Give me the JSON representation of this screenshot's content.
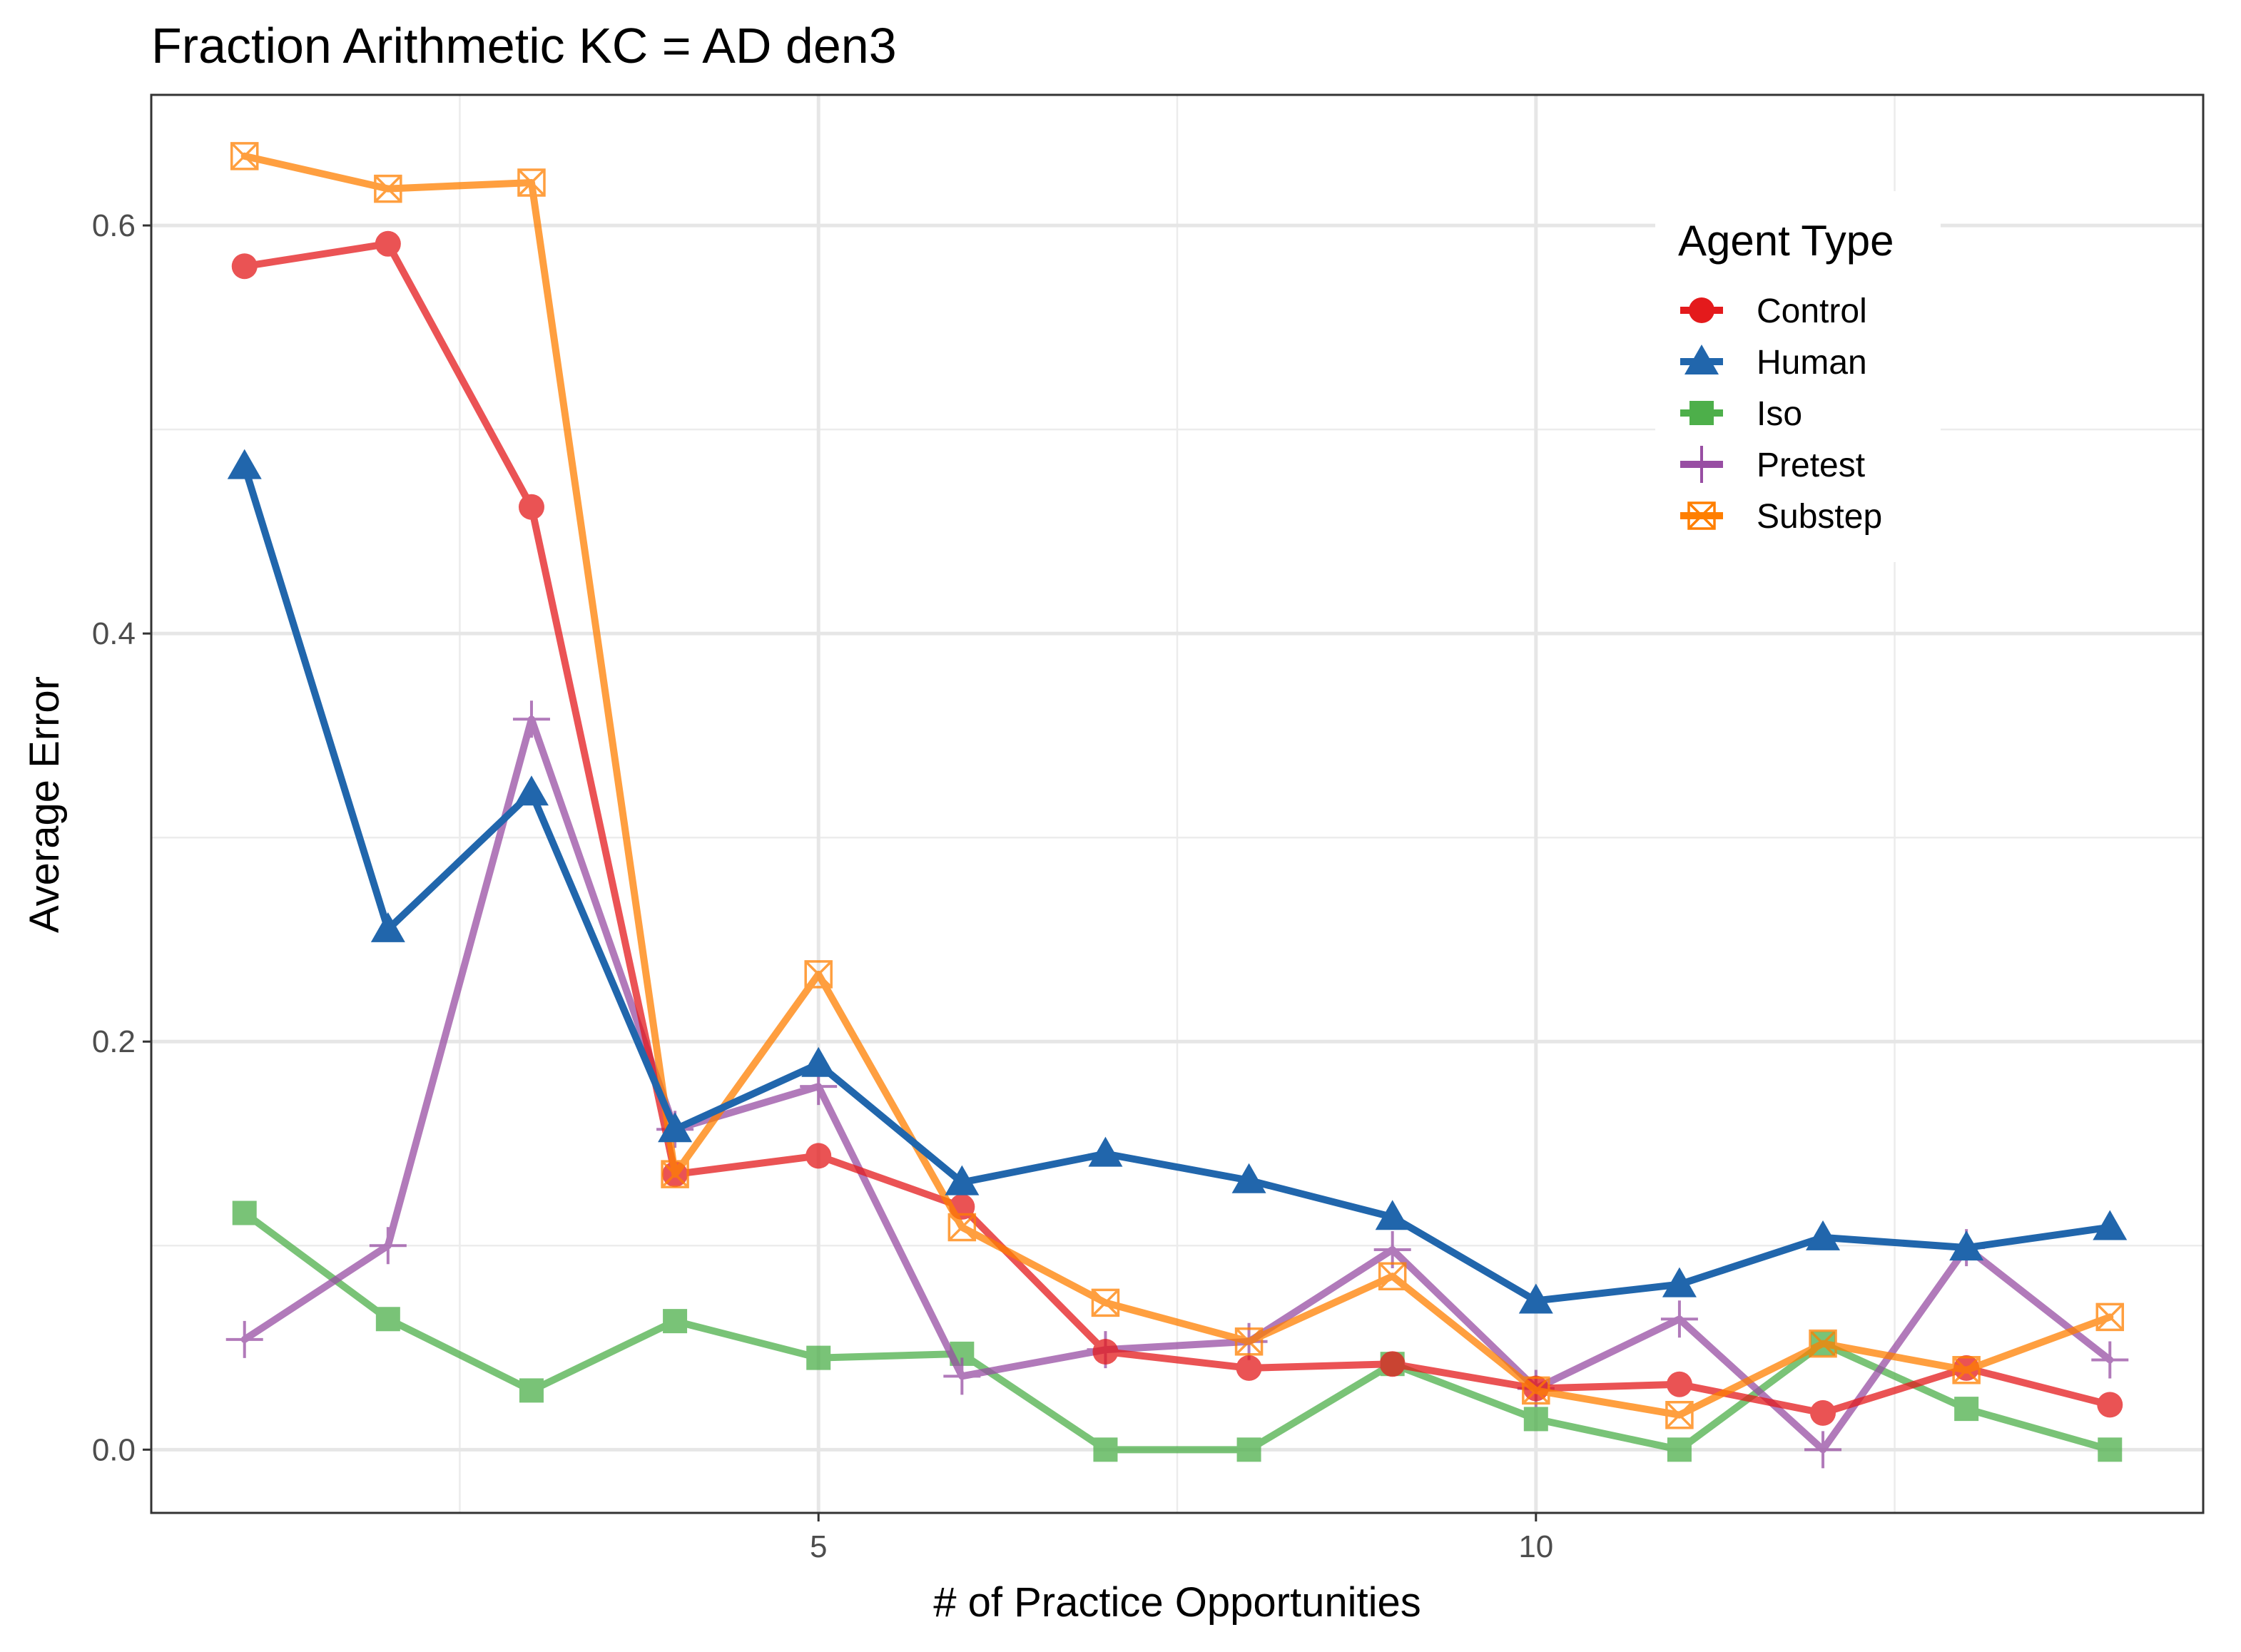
{
  "chart_data": {
    "type": "line",
    "title": "Fraction Arithmetic KC =  AD den3",
    "xlabel": "# of Practice Opportunities",
    "ylabel": "Average Error",
    "xlim": [
      0.35,
      14.65
    ],
    "ylim": [
      -0.031,
      0.664
    ],
    "x_ticks": [
      5,
      10
    ],
    "y_ticks": [
      0.0,
      0.2,
      0.4,
      0.6
    ],
    "y_tick_labels": [
      "0.0",
      "0.2",
      "0.4",
      "0.6"
    ],
    "grid": true,
    "legend": {
      "title": "Agent Type",
      "position": "top-right"
    },
    "x": [
      1,
      2,
      3,
      4,
      5,
      6,
      7,
      8,
      9,
      10,
      11,
      12,
      13,
      14
    ],
    "series": [
      {
        "name": "Control",
        "color": "#e41a1c",
        "marker": "circle",
        "values": [
          0.58,
          0.591,
          0.462,
          0.135,
          0.144,
          0.119,
          0.048,
          0.04,
          0.042,
          0.03,
          0.032,
          0.018,
          0.04,
          0.022
        ]
      },
      {
        "name": "Human",
        "color": "#2166ac",
        "marker": "triangle",
        "values": [
          0.482,
          0.255,
          0.322,
          0.157,
          0.189,
          0.131,
          0.145,
          0.132,
          0.114,
          0.073,
          0.081,
          0.104,
          0.099,
          0.109
        ]
      },
      {
        "name": "Iso",
        "color": "#4daf4a",
        "marker": "square",
        "values": [
          0.116,
          0.064,
          0.029,
          0.063,
          0.045,
          0.047,
          0.0,
          0.0,
          0.042,
          0.015,
          0.0,
          0.052,
          0.02,
          0.0
        ]
      },
      {
        "name": "Pretest",
        "color": "#984ea3",
        "marker": "plus",
        "values": [
          0.054,
          0.1,
          0.358,
          0.157,
          0.178,
          0.036,
          0.049,
          0.053,
          0.098,
          0.03,
          0.064,
          0.0,
          0.099,
          0.044
        ]
      },
      {
        "name": "Substep",
        "color": "#ff7f00",
        "marker": "box-x",
        "values": [
          0.634,
          0.618,
          0.621,
          0.135,
          0.233,
          0.109,
          0.072,
          0.053,
          0.085,
          0.029,
          0.017,
          0.052,
          0.039,
          0.065
        ]
      }
    ]
  }
}
